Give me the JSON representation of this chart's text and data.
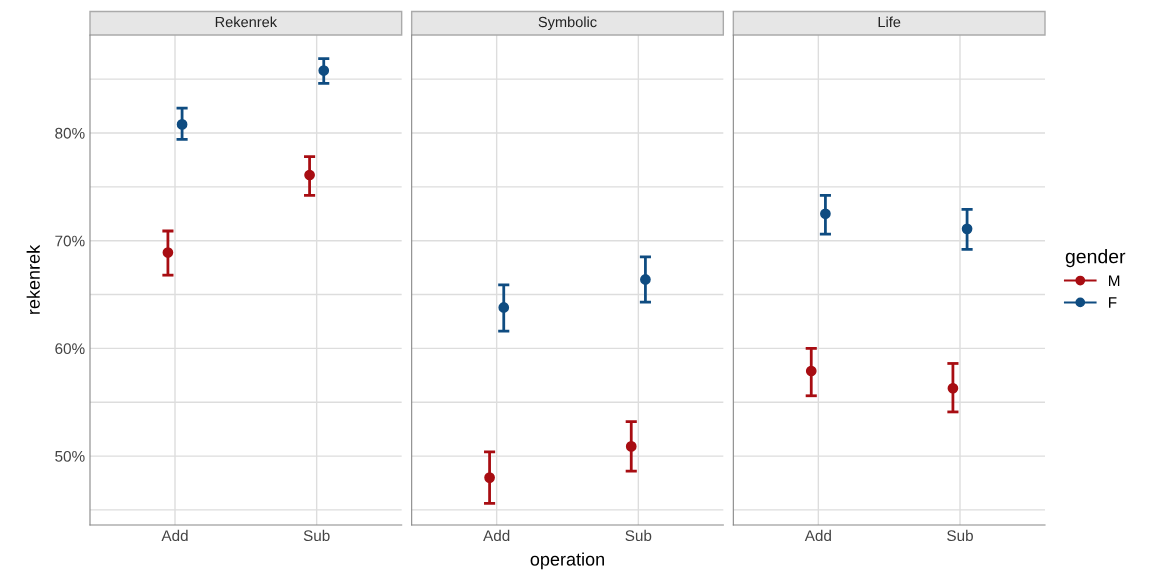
{
  "chart_data": [
    {
      "type": "scatter",
      "title": "Rekenrek",
      "ylabel": "rekenrek",
      "categories": [
        "Add",
        "Sub"
      ],
      "ylim": [
        43.6,
        89.1
      ],
      "yticks": [
        {
          "value": 45,
          "label": null
        },
        {
          "value": 50,
          "label": "50%"
        },
        {
          "value": 55,
          "label": null
        },
        {
          "value": 60,
          "label": "60%"
        },
        {
          "value": 65,
          "label": null
        },
        {
          "value": 70,
          "label": "70%"
        },
        {
          "value": 75,
          "label": null
        },
        {
          "value": 80,
          "label": "80%"
        },
        {
          "value": 85,
          "label": null
        }
      ],
      "grid": true,
      "marker": "circle",
      "series": [
        {
          "color": "#a80d12",
          "values": [
            68.9,
            76.1
          ],
          "errors": [
            [
              66.8,
              70.9
            ],
            [
              74.2,
              77.8
            ]
          ]
        },
        {
          "color": "#0f4c81",
          "values": [
            80.8,
            85.8
          ],
          "errors": [
            [
              79.4,
              82.3
            ],
            [
              84.6,
              86.9
            ]
          ]
        }
      ]
    },
    {
      "type": "scatter",
      "title": "Symbolic",
      "xlabel": "operation",
      "categories": [
        "Add",
        "Sub"
      ],
      "ylim": [
        43.6,
        89.1
      ],
      "yticks": [
        {
          "value": 45,
          "label": null
        },
        {
          "value": 50,
          "label": null
        },
        {
          "value": 55,
          "label": null
        },
        {
          "value": 60,
          "label": null
        },
        {
          "value": 65,
          "label": null
        },
        {
          "value": 70,
          "label": null
        },
        {
          "value": 75,
          "label": null
        },
        {
          "value": 80,
          "label": null
        },
        {
          "value": 85,
          "label": null
        }
      ],
      "tick_labels": "x",
      "grid": true,
      "marker": "circle",
      "series": [
        {
          "color": "#a80d12",
          "values": [
            48.0,
            50.9
          ],
          "errors": [
            [
              45.6,
              50.4
            ],
            [
              48.6,
              53.2
            ]
          ]
        },
        {
          "color": "#0f4c81",
          "values": [
            63.8,
            66.4
          ],
          "errors": [
            [
              61.6,
              65.9
            ],
            [
              64.3,
              68.5
            ]
          ]
        }
      ]
    },
    {
      "type": "scatter",
      "title": "Life",
      "legend_title": "gender",
      "categories": [
        "Add",
        "Sub"
      ],
      "ylim": [
        43.6,
        89.1
      ],
      "yticks": [
        {
          "value": 45,
          "label": null
        },
        {
          "value": 50,
          "label": null
        },
        {
          "value": 55,
          "label": null
        },
        {
          "value": 60,
          "label": null
        },
        {
          "value": 65,
          "label": null
        },
        {
          "value": 70,
          "label": null
        },
        {
          "value": 75,
          "label": null
        },
        {
          "value": 80,
          "label": null
        },
        {
          "value": 85,
          "label": null
        }
      ],
      "tick_labels": "x",
      "grid": true,
      "marker": "circle",
      "legend": "right",
      "series": [
        {
          "name": "M",
          "color": "#a80d12",
          "values": [
            57.9,
            56.3
          ],
          "errors": [
            [
              55.6,
              60.0
            ],
            [
              54.1,
              58.6
            ]
          ]
        },
        {
          "name": "F",
          "color": "#0f4c81",
          "values": [
            72.5,
            71.1
          ],
          "errors": [
            [
              70.6,
              74.2
            ],
            [
              69.2,
              72.9
            ]
          ]
        }
      ]
    }
  ]
}
